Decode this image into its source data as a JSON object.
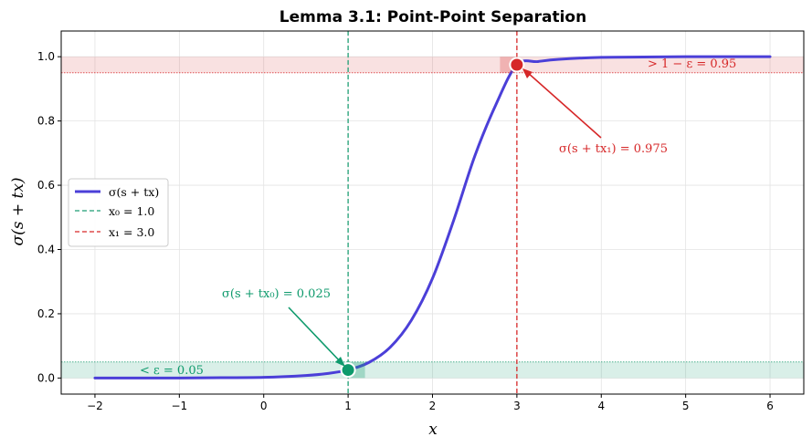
{
  "chart_data": {
    "type": "line",
    "title": "Lemma 3.1: Point-Point Separation",
    "xlabel": "x",
    "ylabel": "σ(s + tx)",
    "xlim": [
      -2.4,
      6.4
    ],
    "ylim": [
      -0.05,
      1.08
    ],
    "xticks": [
      -2,
      -1,
      0,
      1,
      2,
      3,
      4,
      5,
      6
    ],
    "yticks": [
      0.0,
      0.2,
      0.4,
      0.6,
      0.8,
      1.0
    ],
    "xtick_labels": [
      "−2",
      "−1",
      "0",
      "1",
      "2",
      "3",
      "4",
      "5",
      "6"
    ],
    "ytick_labels": [
      "0.0",
      "0.2",
      "0.4",
      "0.6",
      "0.8",
      "1.0"
    ],
    "grid": true,
    "legend_position": "center-left",
    "series": [
      {
        "name": "σ(s + tx)",
        "style": "solid",
        "color": "#4b3fd8",
        "x": [
          -2.0,
          -1.5,
          -1.0,
          -0.5,
          0.0,
          0.5,
          0.75,
          1.0,
          1.25,
          1.5,
          1.75,
          2.0,
          2.25,
          2.5,
          2.75,
          3.0,
          3.25,
          3.5,
          4.0,
          4.5,
          5.0,
          6.0
        ],
        "y": [
          0.0,
          0.0,
          0.0,
          0.001,
          0.002,
          0.008,
          0.014,
          0.025,
          0.049,
          0.096,
          0.18,
          0.31,
          0.49,
          0.69,
          0.85,
          0.975,
          0.985,
          0.992,
          0.998,
          0.999,
          1.0,
          1.0
        ]
      }
    ],
    "vlines": [
      {
        "name": "x₀ = 1.0",
        "x": 1.0,
        "color": "#1f9e74",
        "style": "dashed"
      },
      {
        "name": "x₁ = 3.0",
        "x": 3.0,
        "color": "#d62728",
        "style": "dashed"
      }
    ],
    "bands": [
      {
        "y0": 0.0,
        "y1": 0.05,
        "color": "#1f9e74",
        "label": "< ε = 0.05"
      },
      {
        "y0": 0.95,
        "y1": 1.0,
        "color": "#d62728",
        "label": "> 1 − ε = 0.95"
      }
    ],
    "points": [
      {
        "x": 1.0,
        "y": 0.025,
        "color": "#0e9a6c",
        "label": "σ(s + tx₀) = 0.025"
      },
      {
        "x": 3.0,
        "y": 0.975,
        "color": "#d62728",
        "label": "σ(s + tx₁) = 0.975"
      }
    ]
  },
  "colors": {
    "curve": "#4b3fd8",
    "green": "#1f9e74",
    "green_text": "#0e9a6c",
    "red": "#d62728"
  }
}
